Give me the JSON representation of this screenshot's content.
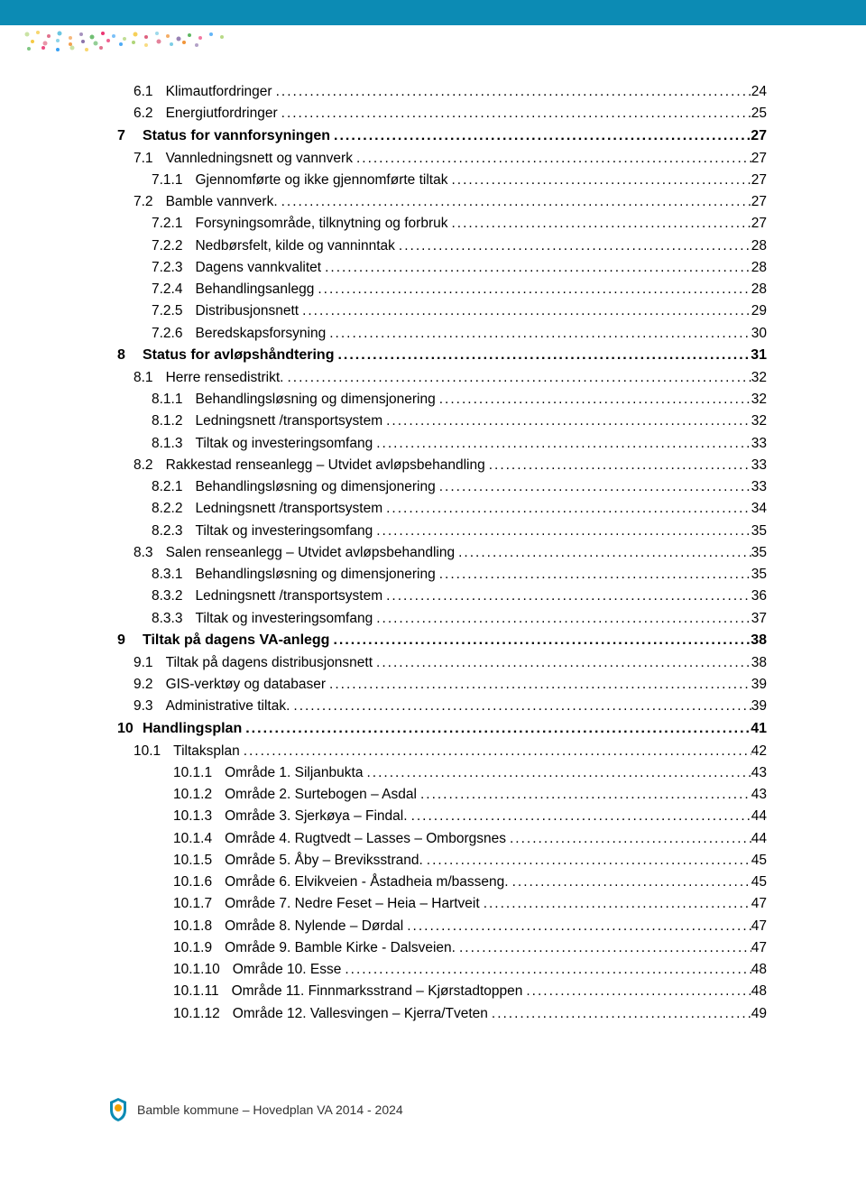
{
  "colors": {
    "header_bar": "#0c8bb4",
    "dot_colors": [
      "#a6d069",
      "#f4c430",
      "#d94f70",
      "#5bc0de",
      "#f08a24",
      "#8064a2",
      "#4caf50",
      "#e91e63",
      "#2196f3"
    ]
  },
  "toc": [
    {
      "level": "lvl1",
      "bold": false,
      "num": "6.1",
      "title": "Klimautfordringer",
      "page": "24"
    },
    {
      "level": "lvl1",
      "bold": false,
      "num": "6.2",
      "title": "Energiutfordringer",
      "page": "25"
    },
    {
      "level": "lvl0b",
      "bold": true,
      "num": "7",
      "title": "Status for vannforsyningen",
      "page": "27"
    },
    {
      "level": "lvl1",
      "bold": false,
      "num": "7.1",
      "title": "Vannledningsnett og vannverk",
      "page": "27"
    },
    {
      "level": "lvl2",
      "bold": false,
      "num": "7.1.1",
      "title": "Gjennomførte og ikke gjennomførte tiltak",
      "page": "27"
    },
    {
      "level": "lvl1",
      "bold": false,
      "num": "7.2",
      "title": "Bamble vannverk.",
      "page": "27"
    },
    {
      "level": "lvl2",
      "bold": false,
      "num": "7.2.1",
      "title": "Forsyningsområde, tilknytning og forbruk",
      "page": "27"
    },
    {
      "level": "lvl2",
      "bold": false,
      "num": "7.2.2",
      "title": "Nedbørsfelt, kilde og vanninntak",
      "page": "28"
    },
    {
      "level": "lvl2",
      "bold": false,
      "num": "7.2.3",
      "title": "Dagens vannkvalitet",
      "page": "28"
    },
    {
      "level": "lvl2",
      "bold": false,
      "num": "7.2.4",
      "title": "Behandlingsanlegg",
      "page": "28"
    },
    {
      "level": "lvl2",
      "bold": false,
      "num": "7.2.5",
      "title": "Distribusjonsnett",
      "page": "29"
    },
    {
      "level": "lvl2",
      "bold": false,
      "num": "7.2.6",
      "title": "Beredskapsforsyning",
      "page": "30"
    },
    {
      "level": "lvl0b",
      "bold": true,
      "num": "8",
      "title": "Status for avløpshåndtering",
      "page": "31"
    },
    {
      "level": "lvl1",
      "bold": false,
      "num": "8.1",
      "title": "Herre rensedistrikt.",
      "page": "32"
    },
    {
      "level": "lvl2",
      "bold": false,
      "num": "8.1.1",
      "title": "Behandlingsløsning og dimensjonering",
      "page": "32"
    },
    {
      "level": "lvl2",
      "bold": false,
      "num": "8.1.2",
      "title": "Ledningsnett /transportsystem",
      "page": "32"
    },
    {
      "level": "lvl2",
      "bold": false,
      "num": "8.1.3",
      "title": "Tiltak og investeringsomfang",
      "page": "33"
    },
    {
      "level": "lvl1",
      "bold": false,
      "num": "8.2",
      "title": "Rakkestad renseanlegg – Utvidet avløpsbehandling",
      "page": "33"
    },
    {
      "level": "lvl2",
      "bold": false,
      "num": "8.2.1",
      "title": "Behandlingsløsning og dimensjonering",
      "page": "33"
    },
    {
      "level": "lvl2",
      "bold": false,
      "num": "8.2.2",
      "title": "Ledningsnett /transportsystem",
      "page": "34"
    },
    {
      "level": "lvl2",
      "bold": false,
      "num": "8.2.3",
      "title": "Tiltak og investeringsomfang",
      "page": "35"
    },
    {
      "level": "lvl1",
      "bold": false,
      "num": "8.3",
      "title": "Salen renseanlegg – Utvidet avløpsbehandling",
      "page": "35"
    },
    {
      "level": "lvl2",
      "bold": false,
      "num": "8.3.1",
      "title": "Behandlingsløsning og dimensjonering",
      "page": "35"
    },
    {
      "level": "lvl2",
      "bold": false,
      "num": "8.3.2",
      "title": "Ledningsnett /transportsystem",
      "page": "36"
    },
    {
      "level": "lvl2",
      "bold": false,
      "num": "8.3.3",
      "title": "Tiltak og investeringsomfang",
      "page": "37"
    },
    {
      "level": "lvl0b",
      "bold": true,
      "num": "9",
      "title": "Tiltak på dagens VA-anlegg",
      "page": "38"
    },
    {
      "level": "lvl1",
      "bold": false,
      "num": "9.1",
      "title": "Tiltak på dagens distribusjonsnett",
      "page": "38"
    },
    {
      "level": "lvl1",
      "bold": false,
      "num": "9.2",
      "title": "GIS-verktøy og databaser",
      "page": "39"
    },
    {
      "level": "lvl1",
      "bold": false,
      "num": "9.3",
      "title": "Administrative tiltak.",
      "page": "39"
    },
    {
      "level": "lvl0b",
      "bold": true,
      "num": "10",
      "title": "Handlingsplan",
      "page": "41"
    },
    {
      "level": "lvl1",
      "bold": false,
      "num": "10.1",
      "title": "Tiltaksplan",
      "page": "42"
    },
    {
      "level": "lvl3",
      "bold": false,
      "num": "10.1.1",
      "title": "Område 1. Siljanbukta",
      "page": "43"
    },
    {
      "level": "lvl3",
      "bold": false,
      "num": "10.1.2",
      "title": "Område 2. Surtebogen – Asdal",
      "page": "43"
    },
    {
      "level": "lvl3",
      "bold": false,
      "num": "10.1.3",
      "title": "Område 3. Sjerkøya – Findal.",
      "page": "44"
    },
    {
      "level": "lvl3",
      "bold": false,
      "num": "10.1.4",
      "title": "Område 4.  Rugtvedt – Lasses – Omborgsnes",
      "page": "44"
    },
    {
      "level": "lvl3",
      "bold": false,
      "num": "10.1.5",
      "title": "Område 5. Åby – Breviksstrand.",
      "page": "45"
    },
    {
      "level": "lvl3",
      "bold": false,
      "num": "10.1.6",
      "title": "Område 6. Elvikveien - Åstadheia m/basseng.",
      "page": "45"
    },
    {
      "level": "lvl3",
      "bold": false,
      "num": "10.1.7",
      "title": "Område 7. Nedre Feset – Heia – Hartveit",
      "page": "47"
    },
    {
      "level": "lvl3",
      "bold": false,
      "num": "10.1.8",
      "title": "Område 8. Nylende – Dørdal",
      "page": "47"
    },
    {
      "level": "lvl3",
      "bold": false,
      "num": "10.1.9",
      "title": "Område 9. Bamble Kirke - Dalsveien.",
      "page": "47"
    },
    {
      "level": "lvl3",
      "bold": false,
      "num": "10.1.10",
      "title": "Område 10. Esse",
      "page": "48"
    },
    {
      "level": "lvl3",
      "bold": false,
      "num": "10.1.11",
      "title": "Område 11. Finnmarksstrand – Kjørstadtoppen",
      "page": "48"
    },
    {
      "level": "lvl3",
      "bold": false,
      "num": "10.1.12",
      "title": "Område 12. Vallesvingen – Kjerra/Tveten",
      "page": "49"
    }
  ],
  "footer": {
    "text": "Bamble kommune – Hovedplan VA 2014 - 2024",
    "logo_colors": {
      "outer": "#0c8bb4",
      "inner": "#f0a000"
    }
  }
}
